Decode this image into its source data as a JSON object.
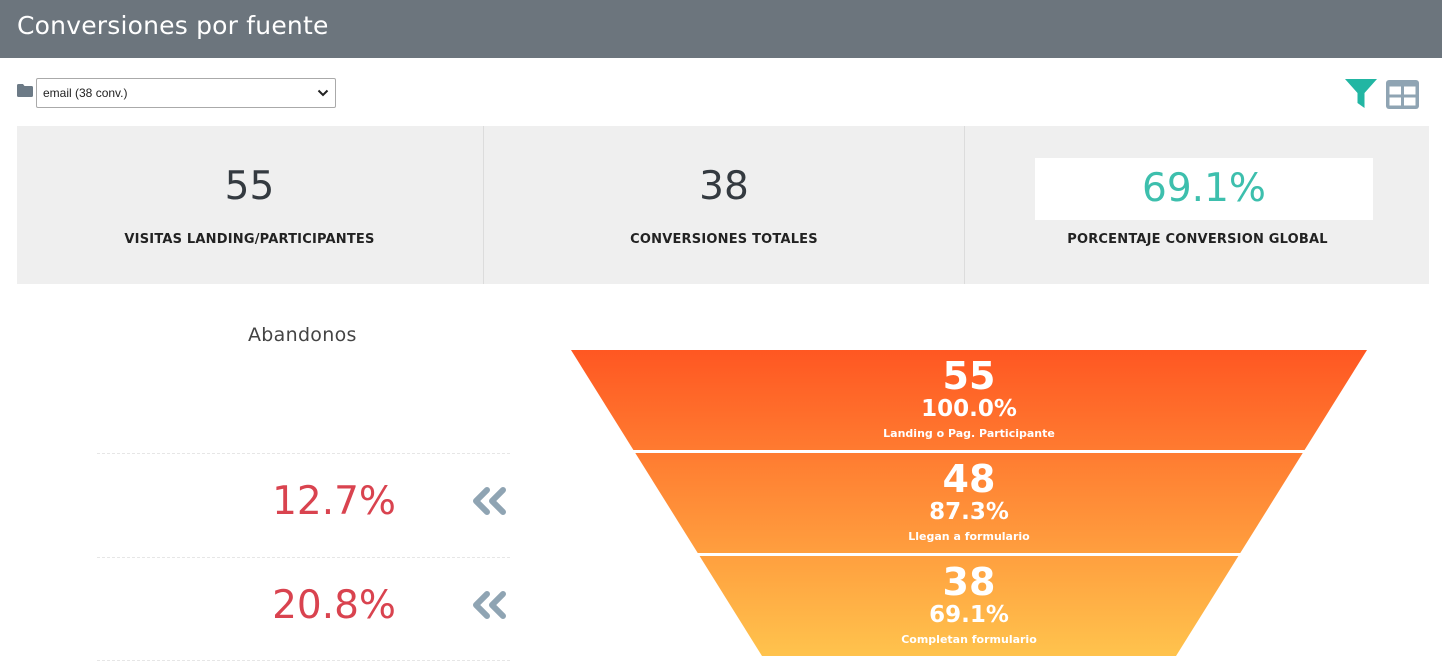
{
  "header": {
    "title": "Conversiones por fuente"
  },
  "source_select": {
    "value": "email (38 conv.)"
  },
  "icons": {
    "folder": "folder-icon",
    "filter": "filter-icon",
    "table": "table-icon",
    "abandon": "double-chevron-left-icon"
  },
  "colors": {
    "header_bg": "#6c757d",
    "accent_teal": "#3dbfad",
    "abandon_red": "#d9434f",
    "funnel_top": "#ff5722",
    "funnel_bottom": "#ffc34d",
    "icon_gray": "#8fa4b3"
  },
  "stats": [
    {
      "value": "55",
      "label": "VISITAS LANDING/PARTICIPANTES"
    },
    {
      "value": "38",
      "label": "CONVERSIONES TOTALES"
    },
    {
      "value": "69.1%",
      "label": "PORCENTAJE CONVERSION GLOBAL"
    }
  ],
  "abandonos": {
    "title": "Abandonos",
    "values": [
      "12.7%",
      "20.8%"
    ]
  },
  "chart_data": {
    "type": "funnel",
    "stages": [
      {
        "name": "Landing o Pag. Participante",
        "value": 55,
        "percent": "100.0%"
      },
      {
        "name": "Llegan a formulario",
        "value": 48,
        "percent": "87.3%"
      },
      {
        "name": "Completan formulario",
        "value": 38,
        "percent": "69.1%"
      }
    ]
  }
}
